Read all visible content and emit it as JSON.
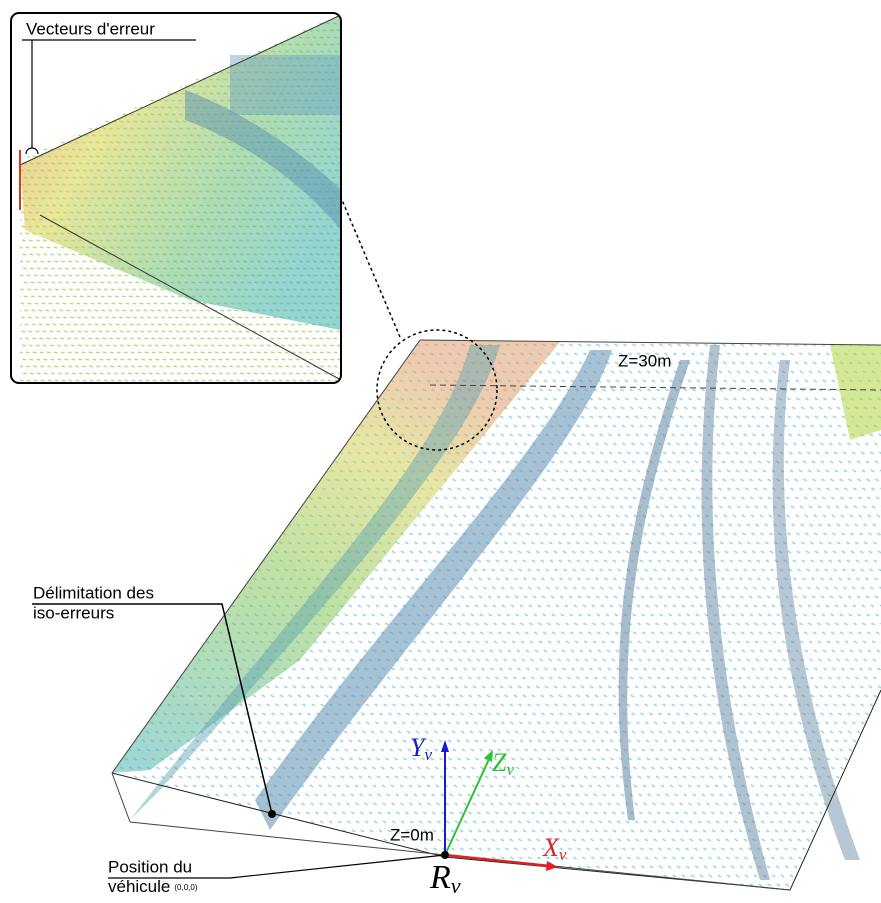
{
  "inset": {
    "label": "Vecteurs d'erreur"
  },
  "annotations": {
    "far_plane": "Z=30m",
    "near_plane": "Z=0m",
    "iso_errors": [
      "Délimitation des",
      "iso-erreurs"
    ],
    "vehicle_position": "Position du",
    "vehicle_position_2": "véhicule",
    "vehicle_origin": "(0,0,0)"
  },
  "axes": [
    {
      "letter": "Y",
      "sub": "v"
    },
    {
      "letter": "Z",
      "sub": "v"
    },
    {
      "letter": "X",
      "sub": "v"
    }
  ],
  "frame": {
    "letter": "R",
    "sub": "v"
  }
}
